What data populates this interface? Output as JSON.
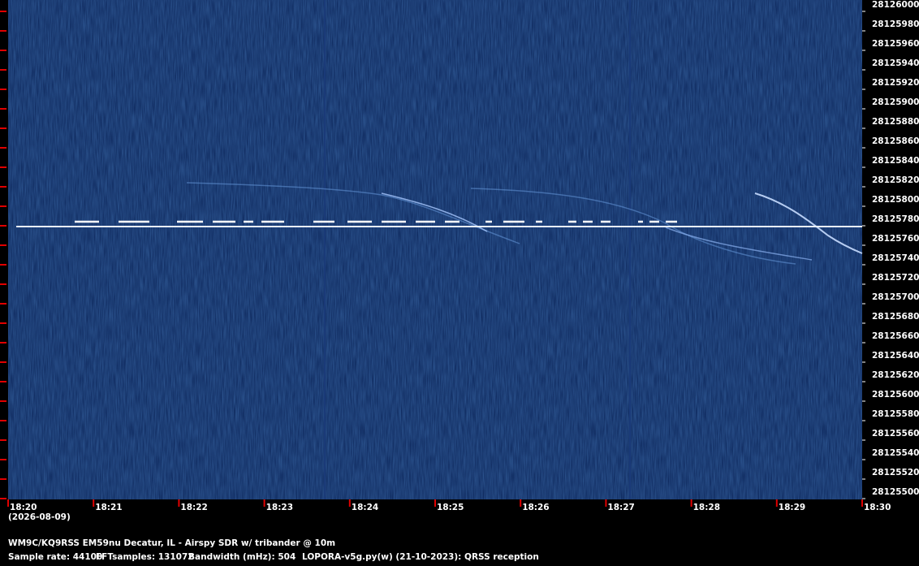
{
  "chart_data": {
    "type": "spectrogram",
    "ylim": [
      28125500,
      28126000
    ],
    "yticks": [
      28125500,
      28125520,
      28125540,
      28125560,
      28125580,
      28125600,
      28125620,
      28125640,
      28125660,
      28125680,
      28125700,
      28125720,
      28125740,
      28125760,
      28125780,
      28125800,
      28125820,
      28125840,
      28125860,
      28125880,
      28125900,
      28125920,
      28125940,
      28125960,
      28125980,
      28126000
    ],
    "x_labels": [
      "18:20",
      "18:21",
      "18:22",
      "18:23",
      "18:24",
      "18:25",
      "18:26",
      "18:27",
      "18:28",
      "18:29",
      "18:30"
    ],
    "date": "(2026-08-09)",
    "footer": {
      "station": "WM9C/KQ9RSS EM59nu Decatur, IL - Airspy SDR w/ tribander @ 10m",
      "sample_rate": "Sample rate: 44100",
      "fft_samples": "FFTsamples: 131072",
      "bandwidth": "Bandwidth (mHz): 504",
      "software": "LOPORA-v5g.py(w) (21-10-2023): QRSS reception"
    }
  }
}
